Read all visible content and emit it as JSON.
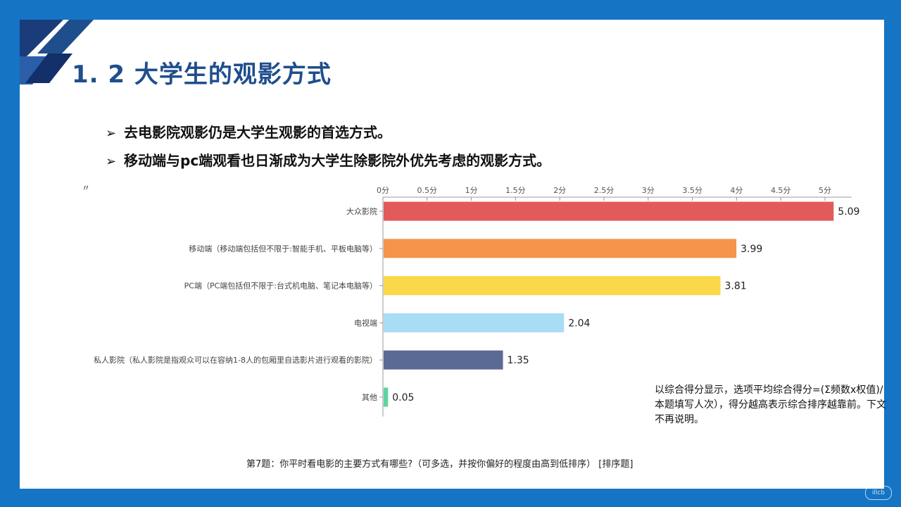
{
  "slide": {
    "title": "1. 2 大学生的观影方式",
    "bullets": [
      {
        "arrow": "➢",
        "text": "去电影院观影仍是大学生观影的首选方式。"
      },
      {
        "arrow": "➢",
        "text": "移动端与pc端观看也日渐成为大学生除影院外优先考虑的观影方式。"
      }
    ],
    "stray_mark": "〃",
    "note": "以综合得分显示，选项平均综合得分=(Σ频数x权值)/本题填写人次），得分越高表示综合排序越靠前。下文不再说明。",
    "watermark": "illcb",
    "colors": {
      "frame": "#1574c4",
      "title": "#1f4e8c"
    }
  },
  "chart_data": {
    "type": "bar",
    "orientation": "horizontal",
    "categories": [
      "大众影院",
      "移动端（移动端包括但不限于:智能手机、平板电脑等）",
      "PC端（PC端包括但不限于:台式机电脑、笔记本电脑等）",
      "电视端",
      "私人影院（私人影院是指观众可以在容纳1-8人的包厢里自选影片进行观看的影院）",
      "其他"
    ],
    "values": [
      5.09,
      3.99,
      3.81,
      2.04,
      1.35,
      0.05
    ],
    "value_labels": [
      "5.09",
      "3.99",
      "3.81",
      "2.04",
      "1.35",
      "0.05"
    ],
    "colors": [
      "#e35a5a",
      "#f5944a",
      "#fbd84a",
      "#a9dcf5",
      "#5a6a94",
      "#5fd3a0"
    ],
    "x_ticks": [
      0,
      0.5,
      1,
      1.5,
      2,
      2.5,
      3,
      3.5,
      4,
      4.5,
      5
    ],
    "x_tick_labels": [
      "0分",
      "0.5分",
      "1分",
      "1.5分",
      "2分",
      "2.5分",
      "3分",
      "3.5分",
      "4分",
      "4.5分",
      "5分"
    ],
    "xlim": [
      0,
      5.3
    ],
    "axis_position": "top",
    "grid": false,
    "caption": "第7题：你平时看电影的主要方式有哪些?（可多选，并按你偏好的程度由高到低排序） [排序题]"
  }
}
